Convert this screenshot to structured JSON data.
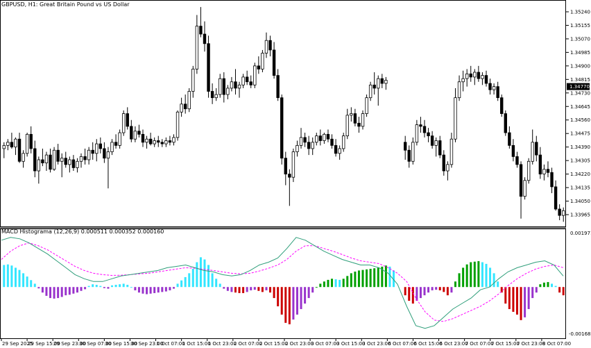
{
  "symbol_title": "GBPUSD, H1:  Great Britain Pound vs US Dollar",
  "indicator_title": "MACD Histograma (12,26,9) 0.000511 0.000352 0.000160",
  "colors": {
    "background": "#ffffff",
    "candle": "#000000",
    "macd_line_up": "#2e9e7a",
    "macd_line_down": "#7a1f1f",
    "signal_line": "#ff00ff",
    "hist_strong_up": "#00a000",
    "hist_weak_up": "#33e6ff",
    "hist_weak_down": "#9933cc",
    "hist_strong_down": "#cc0000"
  },
  "price_axis": {
    "labels": [
      "1.35240",
      "1.35155",
      "1.35070",
      "1.34985",
      "1.34900",
      "1.34815",
      "1.34730",
      "1.34645",
      "1.34560",
      "1.34475",
      "1.34390",
      "1.34305",
      "1.34220",
      "1.34135",
      "1.34050",
      "1.33965"
    ],
    "current_price": "1.34770"
  },
  "indicator_axis": {
    "top": "0.001971",
    "bottom": "-0.001683"
  },
  "time_axis": {
    "labels": [
      "29 Sep 2025",
      "29 Sep 15:00",
      "29 Sep 23:00",
      "30 Sep 07:00",
      "30 Sep 15:00",
      "30 Sep 23:00",
      "1 Oct 07:00",
      "1 Oct 15:00",
      "1 Oct 23:00",
      "2 Oct 07:00",
      "2 Oct 15:00",
      "2 Oct 23:00",
      "3 Oct 07:00",
      "3 Oct 15:00",
      "3 Oct 23:00",
      "6 Oct 07:00",
      "6 Oct 15:00",
      "6 Oct 23:00",
      "7 Oct 07:00",
      "7 Oct 15:00",
      "7 Oct 23:00",
      "8 Oct 07:00"
    ]
  },
  "chart_data": {
    "type": "candlestick",
    "ohlc": [
      [
        1.3438,
        1.3442,
        1.3432,
        1.344
      ],
      [
        1.344,
        1.3444,
        1.3437,
        1.3442
      ],
      [
        1.3442,
        1.3448,
        1.3438,
        1.3439
      ],
      [
        1.3439,
        1.3445,
        1.3434,
        1.3444
      ],
      [
        1.3444,
        1.3448,
        1.3429,
        1.343
      ],
      [
        1.343,
        1.3437,
        1.3426,
        1.3435
      ],
      [
        1.3435,
        1.3448,
        1.3433,
        1.3447
      ],
      [
        1.3447,
        1.3452,
        1.3435,
        1.3438
      ],
      [
        1.3438,
        1.3443,
        1.342,
        1.3424
      ],
      [
        1.3424,
        1.3433,
        1.3416,
        1.3431
      ],
      [
        1.3431,
        1.3438,
        1.3427,
        1.3429
      ],
      [
        1.3429,
        1.3436,
        1.3424,
        1.3434
      ],
      [
        1.3434,
        1.3438,
        1.3423,
        1.3425
      ],
      [
        1.3425,
        1.3439,
        1.3424,
        1.3437
      ],
      [
        1.3437,
        1.3441,
        1.3428,
        1.343
      ],
      [
        1.343,
        1.3435,
        1.342,
        1.3432
      ],
      [
        1.3432,
        1.3436,
        1.3426,
        1.3428
      ],
      [
        1.3428,
        1.3433,
        1.3423,
        1.3431
      ],
      [
        1.3431,
        1.3434,
        1.3424,
        1.3426
      ],
      [
        1.3426,
        1.3432,
        1.3423,
        1.343
      ],
      [
        1.343,
        1.3435,
        1.3426,
        1.3433
      ],
      [
        1.3433,
        1.3438,
        1.3428,
        1.3431
      ],
      [
        1.3431,
        1.3439,
        1.3428,
        1.3437
      ],
      [
        1.3437,
        1.3442,
        1.3431,
        1.3435
      ],
      [
        1.3435,
        1.3444,
        1.343,
        1.3441
      ],
      [
        1.3441,
        1.3445,
        1.3435,
        1.3438
      ],
      [
        1.3438,
        1.3442,
        1.3429,
        1.3432
      ],
      [
        1.3432,
        1.3439,
        1.3413,
        1.3436
      ],
      [
        1.3436,
        1.3444,
        1.3434,
        1.3442
      ],
      [
        1.3442,
        1.3447,
        1.3438,
        1.344
      ],
      [
        1.344,
        1.345,
        1.3438,
        1.3448
      ],
      [
        1.3448,
        1.3462,
        1.3446,
        1.346
      ],
      [
        1.346,
        1.3464,
        1.345,
        1.3452
      ],
      [
        1.3452,
        1.3456,
        1.3442,
        1.3444
      ],
      [
        1.3444,
        1.3452,
        1.3442,
        1.3449
      ],
      [
        1.3449,
        1.3453,
        1.3445,
        1.3447
      ],
      [
        1.3447,
        1.345,
        1.3439,
        1.3442
      ],
      [
        1.3442,
        1.3446,
        1.3438,
        1.3444
      ],
      [
        1.3444,
        1.3448,
        1.344,
        1.3441
      ],
      [
        1.3441,
        1.3445,
        1.3439,
        1.3443
      ],
      [
        1.3443,
        1.3446,
        1.3439,
        1.3442
      ],
      [
        1.3442,
        1.3444,
        1.3439,
        1.3441
      ],
      [
        1.3441,
        1.3445,
        1.3439,
        1.3443
      ],
      [
        1.3443,
        1.3446,
        1.344,
        1.3442
      ],
      [
        1.3442,
        1.3447,
        1.344,
        1.3445
      ],
      [
        1.3445,
        1.3462,
        1.3443,
        1.3461
      ],
      [
        1.3461,
        1.347,
        1.3458,
        1.3466
      ],
      [
        1.3466,
        1.3472,
        1.346,
        1.3463
      ],
      [
        1.3463,
        1.3476,
        1.3461,
        1.3474
      ],
      [
        1.3474,
        1.349,
        1.347,
        1.3488
      ],
      [
        1.3488,
        1.3522,
        1.3485,
        1.3515
      ],
      [
        1.3515,
        1.3527,
        1.3508,
        1.351
      ],
      [
        1.351,
        1.3518,
        1.3499,
        1.3504
      ],
      [
        1.3504,
        1.3509,
        1.347,
        1.3474
      ],
      [
        1.3474,
        1.3479,
        1.3466,
        1.347
      ],
      [
        1.347,
        1.3476,
        1.3468,
        1.3472
      ],
      [
        1.3472,
        1.3485,
        1.347,
        1.3482
      ],
      [
        1.3482,
        1.3486,
        1.3467,
        1.3472
      ],
      [
        1.3472,
        1.3478,
        1.3469,
        1.3476
      ],
      [
        1.3476,
        1.3483,
        1.3474,
        1.348
      ],
      [
        1.348,
        1.3488,
        1.3472,
        1.3476
      ],
      [
        1.3476,
        1.348,
        1.347,
        1.3478
      ],
      [
        1.3478,
        1.3485,
        1.3476,
        1.3483
      ],
      [
        1.3483,
        1.3487,
        1.3478,
        1.348
      ],
      [
        1.348,
        1.3484,
        1.3476,
        1.3478
      ],
      [
        1.3478,
        1.3492,
        1.3476,
        1.349
      ],
      [
        1.349,
        1.3496,
        1.3485,
        1.3488
      ],
      [
        1.3488,
        1.35,
        1.3486,
        1.3498
      ],
      [
        1.3498,
        1.3511,
        1.3495,
        1.3506
      ],
      [
        1.3506,
        1.3509,
        1.3496,
        1.35
      ],
      [
        1.35,
        1.3505,
        1.3482,
        1.3484
      ],
      [
        1.3484,
        1.3488,
        1.3468,
        1.347
      ],
      [
        1.347,
        1.3472,
        1.3428,
        1.3432
      ],
      [
        1.3432,
        1.3436,
        1.3415,
        1.3422
      ],
      [
        1.3422,
        1.3425,
        1.3402,
        1.342
      ],
      [
        1.342,
        1.3438,
        1.3417,
        1.3436
      ],
      [
        1.3436,
        1.3443,
        1.3433,
        1.344
      ],
      [
        1.344,
        1.3451,
        1.3438,
        1.3445
      ],
      [
        1.3445,
        1.3448,
        1.3439,
        1.3442
      ],
      [
        1.3442,
        1.3446,
        1.3434,
        1.3438
      ],
      [
        1.3438,
        1.3445,
        1.3434,
        1.3442
      ],
      [
        1.3442,
        1.3448,
        1.344,
        1.3446
      ],
      [
        1.3446,
        1.345,
        1.344,
        1.3443
      ],
      [
        1.3443,
        1.3448,
        1.3441,
        1.3447
      ],
      [
        1.3447,
        1.345,
        1.3442,
        1.3444
      ],
      [
        1.3444,
        1.3447,
        1.3438,
        1.344
      ],
      [
        1.344,
        1.3444,
        1.3433,
        1.3435
      ],
      [
        1.3435,
        1.344,
        1.3431,
        1.3438
      ],
      [
        1.3438,
        1.3448,
        1.3436,
        1.3446
      ],
      [
        1.3446,
        1.3463,
        1.3444,
        1.3459
      ],
      [
        1.3459,
        1.3464,
        1.3455,
        1.346
      ],
      [
        1.346,
        1.3463,
        1.3452,
        1.3454
      ],
      [
        1.3454,
        1.3458,
        1.3448,
        1.3452
      ],
      [
        1.3452,
        1.3462,
        1.345,
        1.346
      ],
      [
        1.346,
        1.3472,
        1.3458,
        1.347
      ],
      [
        1.347,
        1.348,
        1.3468,
        1.3478
      ],
      [
        1.3478,
        1.3486,
        1.3472,
        1.3476
      ],
      [
        1.3476,
        1.3484,
        1.3465,
        1.3482
      ],
      [
        1.3482,
        1.3485,
        1.3476,
        1.3479
      ],
      [
        1.3479,
        1.3483,
        1.3475,
        1.3481
      ]
    ],
    "ohlc_after_gap": [
      [
        1.3442,
        1.3446,
        1.3431,
        1.3437
      ],
      [
        1.3437,
        1.344,
        1.3426,
        1.343
      ],
      [
        1.343,
        1.3445,
        1.3428,
        1.3442
      ],
      [
        1.3442,
        1.3456,
        1.344,
        1.3453
      ],
      [
        1.3453,
        1.3458,
        1.3448,
        1.3452
      ],
      [
        1.3452,
        1.3456,
        1.3445,
        1.3448
      ],
      [
        1.3448,
        1.3451,
        1.3442,
        1.3446
      ],
      [
        1.3446,
        1.3449,
        1.3438,
        1.344
      ],
      [
        1.344,
        1.3445,
        1.3433,
        1.3443
      ],
      [
        1.3443,
        1.3446,
        1.3432,
        1.3434
      ],
      [
        1.3434,
        1.3437,
        1.3421,
        1.3424
      ],
      [
        1.3424,
        1.343,
        1.3418,
        1.3428
      ],
      [
        1.3428,
        1.3448,
        1.3426,
        1.3444
      ],
      [
        1.3444,
        1.3476,
        1.3442,
        1.347
      ],
      [
        1.347,
        1.3484,
        1.3468,
        1.348
      ],
      [
        1.348,
        1.3487,
        1.3474,
        1.3482
      ],
      [
        1.3482,
        1.3488,
        1.3477,
        1.3485
      ],
      [
        1.3485,
        1.349,
        1.348,
        1.3483
      ],
      [
        1.3483,
        1.3488,
        1.3478,
        1.3486
      ],
      [
        1.3486,
        1.349,
        1.348,
        1.3482
      ],
      [
        1.3482,
        1.3486,
        1.3478,
        1.3484
      ],
      [
        1.3484,
        1.3487,
        1.3477,
        1.3479
      ],
      [
        1.3479,
        1.3482,
        1.3472,
        1.3475
      ],
      [
        1.3475,
        1.3479,
        1.3472,
        1.3477
      ],
      [
        1.3477,
        1.348,
        1.3468,
        1.347
      ],
      [
        1.347,
        1.3472,
        1.3458,
        1.346
      ],
      [
        1.346,
        1.3462,
        1.3446,
        1.3448
      ],
      [
        1.3448,
        1.3452,
        1.3438,
        1.344
      ],
      [
        1.344,
        1.3444,
        1.343,
        1.3433
      ],
      [
        1.3433,
        1.3436,
        1.3426,
        1.3428
      ],
      [
        1.3428,
        1.343,
        1.3394,
        1.3408
      ],
      [
        1.3408,
        1.342,
        1.3406,
        1.3418
      ],
      [
        1.3418,
        1.3432,
        1.3416,
        1.343
      ],
      [
        1.343,
        1.345,
        1.3428,
        1.3442
      ],
      [
        1.3442,
        1.3446,
        1.343,
        1.3434
      ],
      [
        1.3434,
        1.3439,
        1.3419,
        1.3422
      ],
      [
        1.3422,
        1.3428,
        1.3418,
        1.3425
      ],
      [
        1.3425,
        1.343,
        1.342,
        1.3423
      ],
      [
        1.3423,
        1.3426,
        1.341,
        1.3414
      ],
      [
        1.3414,
        1.3418,
        1.3399,
        1.34
      ],
      [
        1.34,
        1.3403,
        1.3393,
        1.3396
      ],
      [
        1.3396,
        1.3401,
        1.3392,
        1.3399
      ]
    ],
    "macd_hist": [
      0.0008,
      0.00082,
      0.00078,
      0.0007,
      0.00062,
      0.0005,
      0.00038,
      0.00025,
      0.00012,
      -5e-05,
      -0.0002,
      -0.00032,
      -0.0004,
      -0.00042,
      -0.0004,
      -0.00036,
      -0.0003,
      -0.00028,
      -0.00024,
      -0.0002,
      -0.00014,
      -8e-05,
      4e-05,
      0.0001,
      8e-05,
      4e-05,
      -4e-05,
      -6e-05,
      6e-05,
      8e-05,
      0.0001,
      0.00012,
      8e-05,
      0.0,
      -0.00012,
      -0.0002,
      -0.00024,
      -0.00026,
      -0.00024,
      -0.00022,
      -0.0002,
      -0.00018,
      -0.00016,
      -0.00012,
      -6e-05,
      0.00012,
      0.00024,
      0.00036,
      0.0005,
      0.00066,
      0.0009,
      0.00108,
      0.001,
      0.0008,
      0.0005,
      0.0003,
      0.00012,
      -6e-05,
      -0.00014,
      -0.00018,
      -0.0002,
      -0.00022,
      -0.00022,
      -0.00018,
      -0.00012,
      -0.0001,
      -0.00014,
      -0.00018,
      -0.00012,
      -0.0002,
      -0.0004,
      -0.0007,
      -0.001,
      -0.0013,
      -0.00135,
      -0.00118,
      -0.001,
      -0.0008,
      -0.0006,
      -0.0004,
      -0.0002,
      0.0,
      0.00012,
      0.0002,
      0.00026,
      0.0003,
      0.00028,
      0.00026,
      0.0003,
      0.0004,
      0.0005,
      0.00056,
      0.0006,
      0.00062,
      0.00064,
      0.00066,
      0.00068,
      0.0007,
      0.00074,
      0.00078,
      0.00074,
      0.0006
    ],
    "macd_hist_after_gap": [
      -0.0003,
      -0.0005,
      -0.0006,
      -0.0005,
      -0.0004,
      -0.0003,
      -0.0002,
      -0.00012,
      -0.0001,
      -0.00012,
      -0.00018,
      -0.0003,
      -0.0002,
      0.0002,
      0.0005,
      0.0007,
      0.00082,
      0.0009,
      0.00092,
      0.00094,
      0.0009,
      0.00084,
      0.0007,
      0.0005,
      0.0002,
      -0.0002,
      -0.0006,
      -0.0008,
      -0.0009,
      -0.001,
      -0.0012,
      -0.0011,
      -0.0008,
      -0.0004,
      -0.0002,
      0.0001,
      0.00016,
      0.00018,
      0.00012,
      4e-05,
      -0.0002,
      -0.0003
    ],
    "macd_line_points": [
      0.0017,
      0.0018,
      0.00175,
      0.0016,
      0.0014,
      0.0012,
      0.00095,
      0.0007,
      0.00045,
      0.0003,
      0.0002,
      0.0002,
      0.0003,
      0.0004,
      0.00045,
      0.0005,
      0.00055,
      0.0006,
      0.0007,
      0.00075,
      0.0008,
      0.0007,
      0.0006,
      0.00055,
      0.00045,
      0.0004,
      0.00045,
      0.0006,
      0.0008,
      0.0009,
      0.00105,
      0.0014,
      0.0018,
      0.0017,
      0.0015,
      0.0013,
      0.00115,
      0.001,
      0.0009,
      0.0008,
      0.0008,
      0.0007,
      0.0005,
      0.0001,
      -0.0007,
      -0.0014,
      -0.0015,
      -0.0014,
      -0.0011,
      -0.0008,
      -0.0006,
      -0.0004,
      -0.0001,
      0.0,
      0.0003,
      0.00055,
      0.0007,
      0.0008,
      0.0009,
      0.00095,
      0.0008,
      0.0004
    ],
    "signal_line_points": [
      0.001,
      0.0013,
      0.0015,
      0.0016,
      0.0015,
      0.00135,
      0.00115,
      0.00095,
      0.00075,
      0.0006,
      0.0005,
      0.00045,
      0.00042,
      0.00043,
      0.00045,
      0.00048,
      0.0005,
      0.00055,
      0.0006,
      0.00065,
      0.0007,
      0.00068,
      0.00064,
      0.0006,
      0.00055,
      0.0005,
      0.00048,
      0.0005,
      0.00058,
      0.00068,
      0.0008,
      0.001,
      0.0013,
      0.0015,
      0.0015,
      0.0014,
      0.0013,
      0.00118,
      0.00105,
      0.00095,
      0.0009,
      0.00085,
      0.0007,
      0.0005,
      0.0002,
      -0.0004,
      -0.0009,
      -0.0012,
      -0.00125,
      -0.00115,
      -0.001,
      -0.00085,
      -0.0007,
      -0.0005,
      -0.00025,
      5e-05,
      0.0003,
      0.0005,
      0.00065,
      0.00075,
      0.0008,
      0.0007
    ]
  }
}
